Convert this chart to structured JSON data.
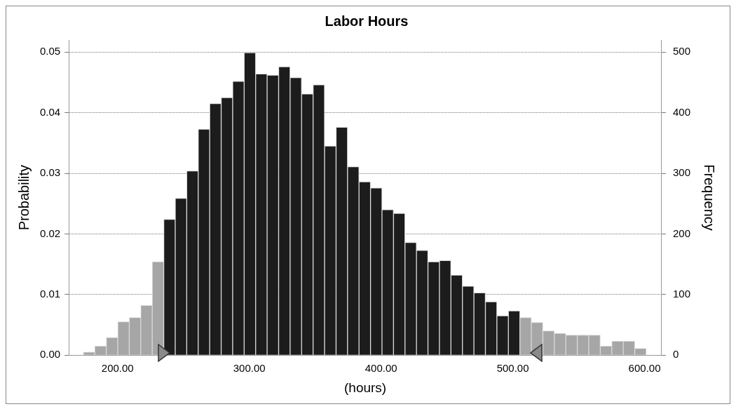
{
  "chart_data": {
    "type": "histogram",
    "title": "Labor Hours",
    "xlabel": "(hours)",
    "ylabel": "Probability",
    "y2label": "Frequency",
    "bins": [
      174,
      182.72,
      191.44,
      200.16,
      208.88,
      217.6,
      226.32,
      235.04,
      243.76,
      252.48,
      261.2,
      269.92,
      278.64,
      287.36,
      296.08,
      304.8,
      313.52,
      322.24,
      330.96,
      339.68,
      348.4,
      357.12,
      365.84,
      374.56,
      383.28,
      392,
      400.72,
      409.44,
      418.16,
      426.88,
      435.6,
      444.32,
      453.04,
      461.76,
      470.48,
      479.2,
      487.92,
      496.64,
      505.36,
      514.08,
      522.8,
      531.52,
      540.24,
      548.96,
      557.68,
      566.4,
      575.12,
      583.84,
      592.56,
      601.28
    ],
    "values": [
      0.0005,
      0.0015,
      0.0029,
      0.0055,
      0.0062,
      0.0082,
      0.0154,
      0.0224,
      0.0259,
      0.0304,
      0.0373,
      0.0415,
      0.0425,
      0.0452,
      0.0499,
      0.0464,
      0.0462,
      0.0476,
      0.0458,
      0.0431,
      0.0446,
      0.0345,
      0.0376,
      0.0311,
      0.0286,
      0.0276,
      0.024,
      0.0234,
      0.0186,
      0.0173,
      0.0154,
      0.0156,
      0.0132,
      0.0114,
      0.0103,
      0.0088,
      0.0065,
      0.0073,
      0.0062,
      0.0054,
      0.004,
      0.0036,
      0.0033,
      0.0033,
      0.0033,
      0.0015,
      0.0023,
      0.0023,
      0.0011
    ],
    "colors": [
      "#a6a6a6",
      "#a6a6a6",
      "#a6a6a6",
      "#a6a6a6",
      "#a6a6a6",
      "#a6a6a6",
      "#a6a6a6",
      "#1c1c1c",
      "#1c1c1c",
      "#1c1c1c",
      "#1c1c1c",
      "#1c1c1c",
      "#1c1c1c",
      "#1c1c1c",
      "#1c1c1c",
      "#1c1c1c",
      "#1c1c1c",
      "#1c1c1c",
      "#1c1c1c",
      "#1c1c1c",
      "#1c1c1c",
      "#1c1c1c",
      "#1c1c1c",
      "#1c1c1c",
      "#1c1c1c",
      "#1c1c1c",
      "#1c1c1c",
      "#1c1c1c",
      "#1c1c1c",
      "#1c1c1c",
      "#1c1c1c",
      "#1c1c1c",
      "#1c1c1c",
      "#1c1c1c",
      "#1c1c1c",
      "#1c1c1c",
      "#1c1c1c",
      "#1c1c1c",
      "#a6a6a6",
      "#a6a6a6",
      "#a6a6a6",
      "#a6a6a6",
      "#a6a6a6",
      "#a6a6a6",
      "#a6a6a6",
      "#a6a6a6",
      "#a6a6a6",
      "#a6a6a6",
      "#a6a6a6"
    ],
    "xlim": [
      163,
      613
    ],
    "xticks": [
      {
        "value": 200,
        "label": "200.00"
      },
      {
        "value": 300,
        "label": "300.00"
      },
      {
        "value": 400,
        "label": "400.00"
      },
      {
        "value": 500,
        "label": "500.00"
      },
      {
        "value": 600,
        "label": "600.00"
      }
    ],
    "ylim": [
      0,
      0.052
    ],
    "yticks": [
      {
        "value": 0,
        "label": "0.00"
      },
      {
        "value": 0.01,
        "label": "0.01"
      },
      {
        "value": 0.02,
        "label": "0.02"
      },
      {
        "value": 0.03,
        "label": "0.03"
      },
      {
        "value": 0.04,
        "label": "0.04"
      },
      {
        "value": 0.05,
        "label": "0.05"
      }
    ],
    "y2lim": [
      0,
      520
    ],
    "y2ticks": [
      0,
      100,
      200,
      300,
      400,
      500
    ],
    "grid": "y",
    "legend": false
  }
}
